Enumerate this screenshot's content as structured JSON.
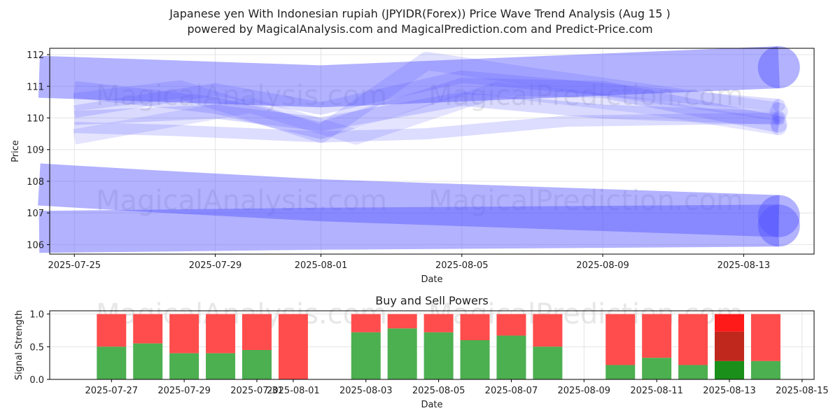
{
  "title": "Japanese yen With Indonesian rupiah (JPYIDR(Forex)) Price Wave Trend Analysis (Aug 15 )",
  "subtitle": "powered by MagicalAnalysis.com and MagicalPrediction.com and Predict-Price.com",
  "watermarks": [
    "MagicalAnalysis.com",
    "MagicalPrediction.com"
  ],
  "chart_data": [
    {
      "type": "line",
      "title": "",
      "xlabel": "Date",
      "ylabel": "Price",
      "ylim": [
        105.7,
        112.2
      ],
      "xlim": [
        "2025-07-24",
        "2025-08-15"
      ],
      "yticks": [
        "106",
        "107",
        "108",
        "109",
        "110",
        "111",
        "112"
      ],
      "xticks": [
        "2025-07-25",
        "2025-07-29",
        "2025-08-01",
        "2025-08-05",
        "2025-08-09",
        "2025-08-13"
      ],
      "grid": true,
      "color": "#5555ff",
      "series": [
        {
          "x": [
            "2025-07-24",
            "2025-08-01",
            "2025-08-14"
          ],
          "y": [
            111.3,
            111.0,
            111.6
          ]
        },
        {
          "x": [
            "2025-07-24",
            "2025-07-27",
            "2025-08-01",
            "2025-08-14"
          ],
          "y": [
            107.9,
            107.7,
            107.4,
            106.9
          ]
        },
        {
          "x": [
            "2025-07-24",
            "2025-08-01",
            "2025-08-14"
          ],
          "y": [
            106.4,
            106.5,
            106.6
          ]
        },
        {
          "x": [
            "2025-07-25",
            "2025-07-29",
            "2025-08-01",
            "2025-08-05",
            "2025-08-09",
            "2025-08-14"
          ],
          "y": [
            110.9,
            110.4,
            109.6,
            111.0,
            110.9,
            109.8
          ]
        },
        {
          "x": [
            "2025-07-25",
            "2025-07-28",
            "2025-08-01",
            "2025-08-04",
            "2025-08-07",
            "2025-08-14"
          ],
          "y": [
            110.5,
            110.9,
            109.5,
            111.8,
            111.3,
            110.2
          ]
        },
        {
          "x": [
            "2025-07-25",
            "2025-07-29",
            "2025-08-01",
            "2025-08-05",
            "2025-08-09",
            "2025-08-14"
          ],
          "y": [
            110.0,
            110.2,
            109.8,
            110.6,
            110.2,
            110.0
          ]
        },
        {
          "x": [
            "2025-07-25",
            "2025-07-30",
            "2025-08-02",
            "2025-08-06",
            "2025-08-10",
            "2025-08-14"
          ],
          "y": [
            109.4,
            110.4,
            109.4,
            110.9,
            110.4,
            109.7
          ]
        },
        {
          "x": [
            "2025-07-25",
            "2025-07-29",
            "2025-08-01",
            "2025-08-05",
            "2025-08-08",
            "2025-08-14"
          ],
          "y": [
            110.2,
            110.9,
            110.3,
            111.3,
            111.0,
            110.4
          ]
        },
        {
          "x": [
            "2025-07-25",
            "2025-07-28",
            "2025-08-01",
            "2025-08-04",
            "2025-08-08",
            "2025-08-14"
          ],
          "y": [
            109.7,
            109.6,
            109.4,
            109.5,
            109.9,
            110.0
          ]
        }
      ]
    },
    {
      "type": "bar",
      "title": "Buy and Sell Powers",
      "xlabel": "Date",
      "ylabel": "Signal Strength",
      "ylim": [
        0,
        1.05
      ],
      "yticks": [
        "0.0",
        "0.5",
        "1.0"
      ],
      "xlim": [
        "2025-07-25",
        "2025-08-15"
      ],
      "xticks": [
        "2025-07-27",
        "2025-07-29",
        "2025-07-31",
        "2025-08-01",
        "2025-08-03",
        "2025-08-05",
        "2025-08-07",
        "2025-08-09",
        "2025-08-11",
        "2025-08-13",
        "2025-08-15"
      ],
      "buy_color": "#4caf50",
      "sell_color": "#ff4d4d",
      "highlight_buy_color": "#1a8f1a",
      "highlight_sell_color": "#ff1a1a",
      "highlight_mid_color": "#c0281e",
      "categories": [
        "2025-07-27",
        "2025-07-28",
        "2025-07-29",
        "2025-07-30",
        "2025-07-31",
        "2025-08-01",
        "2025-08-03",
        "2025-08-04",
        "2025-08-05",
        "2025-08-06",
        "2025-08-07",
        "2025-08-08",
        "2025-08-10",
        "2025-08-11",
        "2025-08-12",
        "2025-08-13",
        "2025-08-14"
      ],
      "series": [
        {
          "name": "Buy",
          "values": [
            0.5,
            0.55,
            0.4,
            0.4,
            0.45,
            0.0,
            0.72,
            0.78,
            0.72,
            0.6,
            0.67,
            0.5,
            0.22,
            0.33,
            0.22,
            0.28,
            0.28
          ]
        },
        {
          "name": "Sell",
          "values": [
            0.5,
            0.45,
            0.6,
            0.6,
            0.55,
            1.0,
            0.28,
            0.22,
            0.28,
            0.4,
            0.33,
            0.5,
            0.78,
            0.67,
            0.78,
            0.72,
            0.72
          ]
        }
      ],
      "highlight": {
        "category": "2025-08-13",
        "mid_value": 0.45
      }
    }
  ]
}
